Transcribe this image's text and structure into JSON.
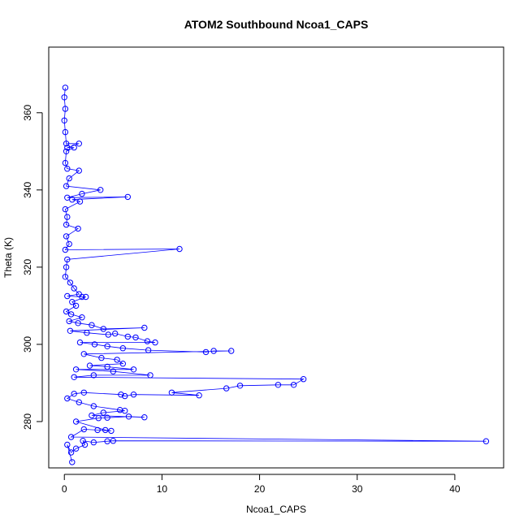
{
  "chart_data": {
    "type": "scatter",
    "title": "ATOM2 Southbound Ncoa1_CAPS",
    "xlabel": "Ncoa1_CAPS",
    "ylabel": "Theta (K)",
    "xlim": [
      -1.6,
      45
    ],
    "ylim": [
      268,
      377
    ],
    "xticks": [
      0,
      10,
      20,
      30,
      40
    ],
    "yticks": [
      280,
      300,
      320,
      340,
      360
    ],
    "grid": false,
    "series": [
      {
        "color": "#0000ff",
        "marker": "open-circle",
        "points": [
          [
            0.1,
            366.5
          ],
          [
            0.0,
            364.0
          ],
          [
            0.1,
            361.0
          ],
          [
            0.0,
            358.0
          ],
          [
            0.1,
            355.0
          ],
          [
            0.2,
            352.0
          ],
          [
            1.5,
            352.0
          ],
          [
            0.3,
            351.0
          ],
          [
            1.0,
            351.0
          ],
          [
            0.2,
            350.0
          ],
          [
            0.1,
            347.0
          ],
          [
            0.3,
            345.5
          ],
          [
            1.5,
            345.0
          ],
          [
            0.5,
            343.0
          ],
          [
            0.2,
            341.0
          ],
          [
            3.7,
            340.0
          ],
          [
            1.8,
            339.0
          ],
          [
            0.3,
            338.0
          ],
          [
            6.5,
            338.2
          ],
          [
            0.8,
            337.5
          ],
          [
            1.6,
            337.0
          ],
          [
            0.1,
            335.0
          ],
          [
            0.3,
            333.0
          ],
          [
            0.2,
            331.0
          ],
          [
            1.4,
            330.0
          ],
          [
            0.2,
            328.0
          ],
          [
            0.5,
            326.0
          ],
          [
            0.1,
            324.5
          ],
          [
            11.8,
            324.7
          ],
          [
            0.3,
            322.0
          ],
          [
            0.2,
            320.0
          ],
          [
            0.1,
            317.5
          ],
          [
            0.6,
            316.0
          ],
          [
            1.0,
            314.5
          ],
          [
            1.5,
            313.0
          ],
          [
            0.3,
            312.5
          ],
          [
            1.8,
            312.3
          ],
          [
            2.2,
            312.3
          ],
          [
            0.8,
            311.0
          ],
          [
            1.2,
            310.0
          ],
          [
            0.2,
            308.5
          ],
          [
            0.7,
            307.8
          ],
          [
            1.8,
            307.0
          ],
          [
            0.5,
            306.0
          ],
          [
            1.4,
            305.5
          ],
          [
            2.8,
            305.0
          ],
          [
            4.0,
            304.0
          ],
          [
            8.2,
            304.3
          ],
          [
            0.6,
            303.5
          ],
          [
            2.3,
            303.0
          ],
          [
            4.5,
            302.5
          ],
          [
            5.2,
            302.8
          ],
          [
            6.5,
            302.0
          ],
          [
            7.3,
            301.8
          ],
          [
            8.5,
            300.8
          ],
          [
            9.3,
            300.5
          ],
          [
            1.6,
            300.5
          ],
          [
            3.1,
            300.0
          ],
          [
            4.4,
            299.5
          ],
          [
            6.0,
            299.0
          ],
          [
            8.6,
            298.5
          ],
          [
            14.5,
            298.0
          ],
          [
            15.3,
            298.3
          ],
          [
            17.1,
            298.3
          ],
          [
            2.0,
            297.5
          ],
          [
            3.8,
            296.5
          ],
          [
            5.4,
            296.0
          ],
          [
            6.0,
            295.0
          ],
          [
            2.6,
            294.5
          ],
          [
            4.4,
            294.2
          ],
          [
            7.1,
            293.5
          ],
          [
            1.2,
            293.5
          ],
          [
            5.0,
            293.0
          ],
          [
            8.8,
            292.0
          ],
          [
            3.0,
            292.0
          ],
          [
            1.0,
            291.5
          ],
          [
            24.5,
            291.0
          ],
          [
            23.5,
            289.5
          ],
          [
            21.9,
            289.5
          ],
          [
            18.0,
            289.3
          ],
          [
            16.6,
            288.6
          ],
          [
            11.0,
            287.5
          ],
          [
            13.8,
            286.8
          ],
          [
            7.1,
            287.0
          ],
          [
            6.2,
            286.6
          ],
          [
            5.8,
            287.0
          ],
          [
            2.0,
            287.5
          ],
          [
            1.0,
            287.2
          ],
          [
            0.3,
            286.0
          ],
          [
            1.5,
            285.0
          ],
          [
            3.0,
            284.0
          ],
          [
            5.7,
            283.0
          ],
          [
            6.2,
            282.8
          ],
          [
            4.0,
            282.3
          ],
          [
            2.8,
            281.6
          ],
          [
            8.2,
            281.1
          ],
          [
            6.6,
            281.3
          ],
          [
            4.4,
            281.0
          ],
          [
            3.5,
            280.9
          ],
          [
            1.2,
            280.0
          ],
          [
            4.2,
            277.8
          ],
          [
            4.8,
            277.6
          ],
          [
            3.4,
            277.8
          ],
          [
            2.0,
            278.0
          ],
          [
            0.7,
            276.0
          ],
          [
            43.2,
            274.9
          ],
          [
            5.0,
            275.0
          ],
          [
            4.4,
            274.9
          ],
          [
            3.0,
            274.6
          ],
          [
            1.9,
            275.0
          ],
          [
            2.1,
            274.0
          ],
          [
            1.2,
            273.0
          ],
          [
            0.7,
            272.0
          ],
          [
            0.3,
            274.0
          ],
          [
            0.8,
            269.5
          ]
        ]
      }
    ]
  }
}
